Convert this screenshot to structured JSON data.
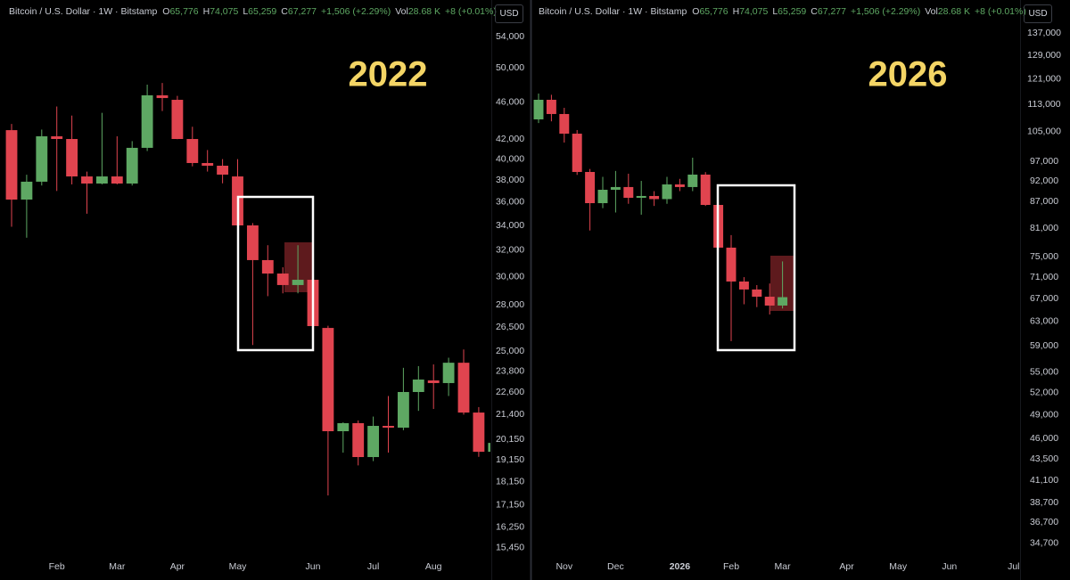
{
  "chart_data": [
    {
      "type": "candlestick",
      "title": "2022",
      "currency": "USD",
      "header": {
        "symbol": "Bitcoin / U.S. Dollar · 1W · Bitstamp",
        "ohlc": [
          {
            "key": "O",
            "value": "65,776"
          },
          {
            "key": "H",
            "value": "74,075"
          },
          {
            "key": "L",
            "value": "65,259"
          },
          {
            "key": "C",
            "value": "67,277"
          }
        ],
        "change": "+1,506 (+2.29%)",
        "volume_key": "Vol",
        "volume": "28.68 K",
        "volume_change": "+8 (+0.01%)"
      },
      "categories": [
        null,
        null,
        null,
        "Feb",
        null,
        null,
        null,
        "Mar",
        null,
        null,
        null,
        "Apr",
        null,
        null,
        null,
        "May",
        null,
        null,
        null,
        null,
        "Jun",
        null,
        null,
        null,
        "Jul",
        null,
        null,
        null,
        "Aug",
        null,
        null,
        null,
        null
      ],
      "open": [
        42940,
        36230,
        37850,
        42300,
        42020,
        38340,
        37680,
        38340,
        37680,
        41120,
        46760,
        46250,
        42020,
        39620,
        39360,
        38340,
        34010,
        31240,
        30230,
        29390,
        29770,
        26460,
        20550,
        20960,
        19290,
        20820,
        20730,
        22620,
        23270,
        23120,
        24300,
        21510,
        19540
      ],
      "high": [
        43600,
        38500,
        43000,
        45500,
        44500,
        38800,
        44800,
        42300,
        41800,
        48000,
        48200,
        46700,
        43300,
        40900,
        40000,
        40000,
        34200,
        32400,
        30700,
        32400,
        32000,
        26600,
        21000,
        21100,
        21300,
        22400,
        24000,
        24100,
        24200,
        24600,
        25100,
        21800,
        20300
      ],
      "low": [
        33900,
        33000,
        37500,
        37000,
        37600,
        35000,
        37600,
        37600,
        37500,
        40800,
        45000,
        42000,
        39300,
        38800,
        37700,
        33800,
        25380,
        28600,
        28800,
        28800,
        26400,
        17560,
        19500,
        18900,
        19100,
        19500,
        20600,
        21600,
        21700,
        22400,
        21400,
        19300,
        19400
      ],
      "close": [
        36230,
        37850,
        42300,
        42020,
        38340,
        37680,
        38340,
        37680,
        41120,
        46760,
        46450,
        42020,
        39620,
        39360,
        38510,
        34010,
        31240,
        30230,
        29390,
        29770,
        26580,
        20550,
        20960,
        19290,
        20820,
        20730,
        22620,
        23320,
        23120,
        24300,
        21510,
        19540,
        19970
      ],
      "up_color": "#5ea863",
      "down_color": "#e0444f",
      "title_color": "#f4d565",
      "log_scale": true,
      "ylim": [
        15110,
        59050
      ],
      "yticks": [
        {
          "value": 54000,
          "label": "54,000"
        },
        {
          "value": 50000,
          "label": "50,000"
        },
        {
          "value": 46000,
          "label": "46,000"
        },
        {
          "value": 42000,
          "label": "42,000"
        },
        {
          "value": 40000,
          "label": "40,000"
        },
        {
          "value": 38000,
          "label": "38,000"
        },
        {
          "value": 36000,
          "label": "36,000"
        },
        {
          "value": 34000,
          "label": "34,000"
        },
        {
          "value": 32000,
          "label": "32,000"
        },
        {
          "value": 30000,
          "label": "30,000"
        },
        {
          "value": 28000,
          "label": "28,000"
        },
        {
          "value": 26500,
          "label": "26,500"
        },
        {
          "value": 25000,
          "label": "25,000"
        },
        {
          "value": 23800,
          "label": "23,800"
        },
        {
          "value": 22600,
          "label": "22,600"
        },
        {
          "value": 21400,
          "label": "21,400"
        },
        {
          "value": 20150,
          "label": "20,150"
        },
        {
          "value": 19150,
          "label": "19,150"
        },
        {
          "value": 18150,
          "label": "18,150"
        },
        {
          "value": 17150,
          "label": "17,150"
        },
        {
          "value": 16250,
          "label": "16,250"
        },
        {
          "value": 15450,
          "label": "15,450"
        }
      ]
    },
    {
      "type": "candlestick",
      "title": "2026",
      "currency": "USD",
      "header": {
        "symbol": "Bitcoin / U.S. Dollar · 1W · Bitstamp",
        "ohlc": [
          {
            "key": "O",
            "value": "65,776"
          },
          {
            "key": "H",
            "value": "74,075"
          },
          {
            "key": "L",
            "value": "65,259"
          },
          {
            "key": "C",
            "value": "67,277"
          }
        ],
        "change": "+1,506 (+2.29%)",
        "volume_key": "Vol",
        "volume": "28.68 K",
        "volume_change": "+8 (+0.01%)"
      },
      "categories": [
        null,
        null,
        "Nov",
        null,
        null,
        null,
        "Dec",
        null,
        null,
        null,
        null,
        "2026",
        null,
        null,
        null,
        "Feb",
        null,
        null,
        null,
        "Mar",
        null,
        null,
        null,
        null,
        "Apr",
        null,
        null,
        null,
        "May",
        null,
        null,
        null,
        "Jun",
        null,
        null,
        null,
        null,
        "Jul"
      ],
      "open": [
        108570,
        114450,
        110150,
        104470,
        94240,
        86650,
        89830,
        90490,
        87910,
        88340,
        87600,
        91130,
        90490,
        93570,
        86240,
        76870,
        70170,
        68680,
        67360,
        65776,
        null,
        null,
        null,
        null,
        null,
        null,
        null,
        null,
        null,
        null,
        null,
        null,
        null,
        null,
        null,
        null,
        null,
        null
      ],
      "high": [
        116380,
        116000,
        112000,
        105500,
        95000,
        93000,
        94500,
        93800,
        92000,
        89500,
        93000,
        92500,
        97930,
        94200,
        87000,
        79500,
        71000,
        69500,
        69800,
        74075,
        null,
        null,
        null,
        null,
        null,
        null,
        null,
        null,
        null,
        null,
        null,
        null,
        null,
        null,
        null,
        null,
        null,
        null
      ],
      "low": [
        107500,
        108000,
        102000,
        93500,
        80500,
        85500,
        84500,
        86500,
        84000,
        86000,
        86500,
        89500,
        89500,
        86000,
        76000,
        59760,
        66000,
        65500,
        64210,
        65259,
        null,
        null,
        null,
        null,
        null,
        null,
        null,
        null,
        null,
        null,
        null,
        null,
        null,
        null,
        null,
        null,
        null,
        null
      ],
      "close": [
        114450,
        110150,
        104470,
        94240,
        86650,
        89830,
        90490,
        87910,
        88340,
        87600,
        91130,
        90490,
        93570,
        86240,
        76870,
        70170,
        68680,
        67360,
        65770,
        67277,
        null,
        null,
        null,
        null,
        null,
        null,
        null,
        null,
        null,
        null,
        null,
        null,
        null,
        null,
        null,
        null,
        null,
        null
      ],
      "up_color": "#5ea863",
      "down_color": "#e0444f",
      "title_color": "#f4d565",
      "log_scale": true,
      "ylim": [
        33440,
        149720
      ],
      "yticks": [
        {
          "value": 137000,
          "label": "137,000"
        },
        {
          "value": 129000,
          "label": "129,000"
        },
        {
          "value": 121000,
          "label": "121,000"
        },
        {
          "value": 113000,
          "label": "113,000"
        },
        {
          "value": 105000,
          "label": "105,000"
        },
        {
          "value": 97000,
          "label": "97,000"
        },
        {
          "value": 92000,
          "label": "92,000"
        },
        {
          "value": 87000,
          "label": "87,000"
        },
        {
          "value": 81000,
          "label": "81,000"
        },
        {
          "value": 75000,
          "label": "75,000"
        },
        {
          "value": 71000,
          "label": "71,000"
        },
        {
          "value": 67000,
          "label": "67,000"
        },
        {
          "value": 63000,
          "label": "63,000"
        },
        {
          "value": 59000,
          "label": "59,000"
        },
        {
          "value": 55000,
          "label": "55,000"
        },
        {
          "value": 52000,
          "label": "52,000"
        },
        {
          "value": 49000,
          "label": "49,000"
        },
        {
          "value": 46000,
          "label": "46,000"
        },
        {
          "value": 43500,
          "label": "43,500"
        },
        {
          "value": 41100,
          "label": "41,100"
        },
        {
          "value": 38700,
          "label": "38,700"
        },
        {
          "value": 36700,
          "label": "36,700"
        },
        {
          "value": 34700,
          "label": "34,700"
        }
      ]
    }
  ]
}
